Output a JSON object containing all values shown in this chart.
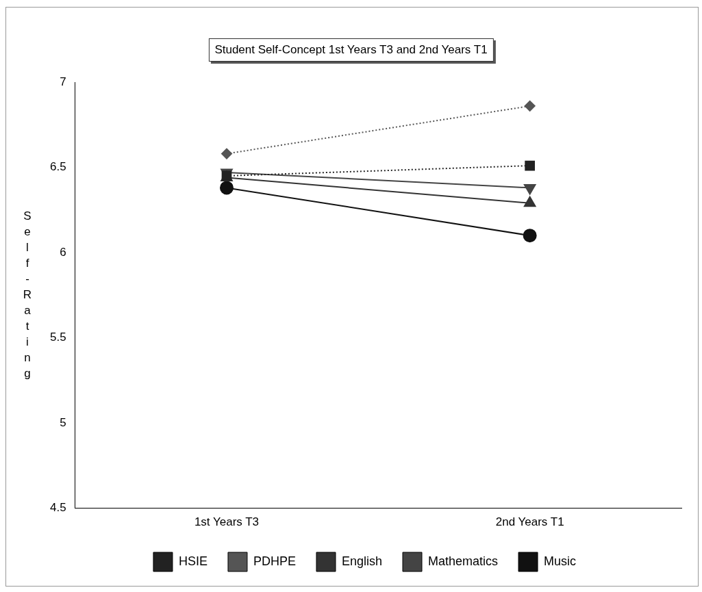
{
  "chart_data": {
    "type": "line",
    "title": "Student Self-Concept 1st Years T3 and 2nd Years T1",
    "ylabel": "Self-Rating",
    "categories": [
      "1st Years T3",
      "2nd Years T1"
    ],
    "series": [
      {
        "name": "HSIE",
        "color": "#222222",
        "values": [
          6.45,
          6.51
        ],
        "marker": "square",
        "line_style": "dotted"
      },
      {
        "name": "PDHPE",
        "color": "#555555",
        "values": [
          6.58,
          6.86
        ],
        "marker": "diamond",
        "line_style": "dotted"
      },
      {
        "name": "English",
        "color": "#333333",
        "values": [
          6.44,
          6.29
        ],
        "marker": "triangle",
        "line_style": "solid"
      },
      {
        "name": "Mathematics",
        "color": "#444444",
        "values": [
          6.47,
          6.38
        ],
        "marker": "triangle-down",
        "line_style": "solid"
      },
      {
        "name": "Music",
        "color": "#111111",
        "values": [
          6.38,
          6.1
        ],
        "marker": "circle",
        "line_style": "solid"
      }
    ],
    "ylim": [
      4.5,
      7
    ],
    "yticks": [
      4.5,
      5,
      5.5,
      6,
      6.5,
      7
    ],
    "grid": false,
    "legend": "bottom"
  }
}
